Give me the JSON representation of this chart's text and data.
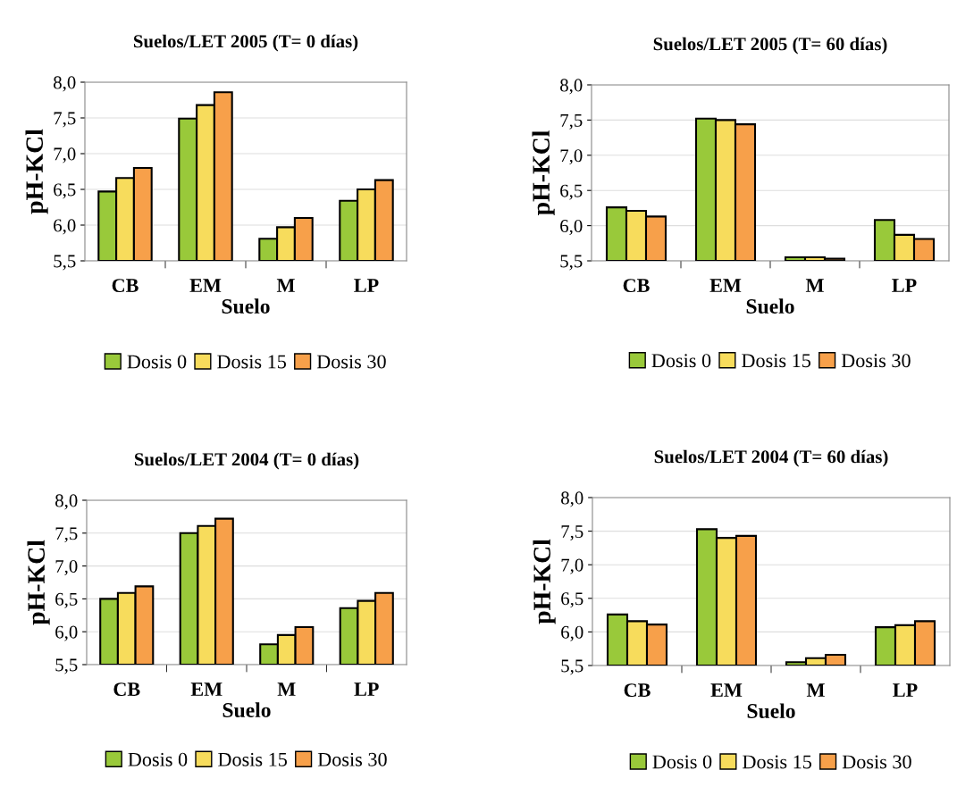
{
  "chart_data": [
    {
      "type": "bar",
      "title": "Suelos/LET 2005 (T= 0 días)",
      "xlabel": "Suelo",
      "ylabel": "pH-KCl",
      "categories": [
        "CB",
        "EM",
        "M",
        "LP"
      ],
      "ylim": [
        5.5,
        8.0
      ],
      "yticks": [
        {
          "value": 5.5,
          "label": "5,5"
        },
        {
          "value": 6.0,
          "label": "6,0"
        },
        {
          "value": 6.5,
          "label": "6,5"
        },
        {
          "value": 7.0,
          "label": "7,0"
        },
        {
          "value": 7.5,
          "label": "7,5"
        },
        {
          "value": 8.0,
          "label": "8,0"
        }
      ],
      "grid": "y",
      "legend": "bottom",
      "series": [
        {
          "name": "Dosis 0",
          "color": "#99c93a",
          "values": [
            6.47,
            7.49,
            5.81,
            6.34
          ]
        },
        {
          "name": "Dosis 15",
          "color": "#f7dc5c",
          "values": [
            6.66,
            7.68,
            5.97,
            6.5
          ]
        },
        {
          "name": "Dosis 30",
          "color": "#f7a04a",
          "values": [
            6.8,
            7.86,
            6.1,
            6.63
          ]
        }
      ]
    },
    {
      "type": "bar",
      "title": "Suelos/LET 2005 (T= 60 días)",
      "xlabel": "Suelo",
      "ylabel": "pH-KCl",
      "categories": [
        "CB",
        "EM",
        "M",
        "LP"
      ],
      "ylim": [
        5.5,
        8.0
      ],
      "yticks": [
        {
          "value": 5.5,
          "label": "5,5"
        },
        {
          "value": 6.0,
          "label": "6,0"
        },
        {
          "value": 6.5,
          "label": "6,5"
        },
        {
          "value": 7.0,
          "label": "7,0"
        },
        {
          "value": 7.5,
          "label": "7,5"
        },
        {
          "value": 8.0,
          "label": "8,0"
        }
      ],
      "grid": "y",
      "legend": "bottom",
      "series": [
        {
          "name": "Dosis 0",
          "color": "#99c93a",
          "values": [
            6.26,
            7.52,
            5.55,
            6.08
          ]
        },
        {
          "name": "Dosis 15",
          "color": "#f7dc5c",
          "values": [
            6.21,
            7.5,
            5.55,
            5.87
          ]
        },
        {
          "name": "Dosis 30",
          "color": "#f7a04a",
          "values": [
            6.13,
            7.44,
            5.53,
            5.81
          ]
        }
      ]
    },
    {
      "type": "bar",
      "title": "Suelos/LET 2004 (T= 0 días)",
      "xlabel": "Suelo",
      "ylabel": "pH-KCl",
      "categories": [
        "CB",
        "EM",
        "M",
        "LP"
      ],
      "ylim": [
        5.5,
        8.0
      ],
      "yticks": [
        {
          "value": 5.5,
          "label": "5,5"
        },
        {
          "value": 6.0,
          "label": "6,0"
        },
        {
          "value": 6.5,
          "label": "6,5"
        },
        {
          "value": 7.0,
          "label": "7,0"
        },
        {
          "value": 7.5,
          "label": "7,5"
        },
        {
          "value": 8.0,
          "label": "8,0"
        }
      ],
      "grid": "y",
      "legend": "bottom",
      "series": [
        {
          "name": "Dosis 0",
          "color": "#99c93a",
          "values": [
            6.5,
            7.5,
            5.81,
            6.36
          ]
        },
        {
          "name": "Dosis 15",
          "color": "#f7dc5c",
          "values": [
            6.59,
            7.61,
            5.95,
            6.47
          ]
        },
        {
          "name": "Dosis 30",
          "color": "#f7a04a",
          "values": [
            6.69,
            7.72,
            6.07,
            6.59
          ]
        }
      ]
    },
    {
      "type": "bar",
      "title": "Suelos/LET 2004 (T= 60 días)",
      "xlabel": "Suelo",
      "ylabel": "pH-KCl",
      "categories": [
        "CB",
        "EM",
        "M",
        "LP"
      ],
      "ylim": [
        5.5,
        8.0
      ],
      "yticks": [
        {
          "value": 5.5,
          "label": "5,5"
        },
        {
          "value": 6.0,
          "label": "6,0"
        },
        {
          "value": 6.5,
          "label": "6,5"
        },
        {
          "value": 7.0,
          "label": "7,0"
        },
        {
          "value": 7.5,
          "label": "7,5"
        },
        {
          "value": 8.0,
          "label": "8,0"
        }
      ],
      "grid": "y",
      "legend": "bottom",
      "series": [
        {
          "name": "Dosis 0",
          "color": "#99c93a",
          "values": [
            6.26,
            7.53,
            5.55,
            6.07
          ]
        },
        {
          "name": "Dosis 15",
          "color": "#f7dc5c",
          "values": [
            6.16,
            7.4,
            5.61,
            6.1
          ]
        },
        {
          "name": "Dosis 30",
          "color": "#f7a04a",
          "values": [
            6.11,
            7.43,
            5.66,
            6.16
          ]
        }
      ]
    }
  ]
}
